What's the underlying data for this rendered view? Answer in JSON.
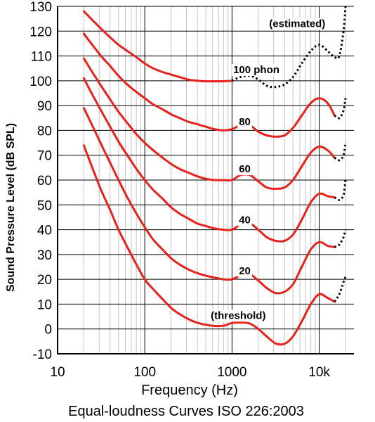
{
  "chart_data": {
    "type": "line",
    "title": "Equal-loudness Curves ISO 226:2003",
    "xlabel": "Frequency (Hz)",
    "ylabel": "Sound Pressure Level (dB SPL)",
    "x_scale": "log",
    "xlim": [
      10,
      25000
    ],
    "ylim": [
      -10,
      130
    ],
    "y_ticks": [
      -10,
      0,
      10,
      20,
      30,
      40,
      50,
      60,
      70,
      80,
      90,
      100,
      110,
      120,
      130
    ],
    "x_ticks": [
      {
        "value": 10,
        "label": "10"
      },
      {
        "value": 100,
        "label": "100"
      },
      {
        "value": 1000,
        "label": "1000"
      },
      {
        "value": 10000,
        "label": "10k"
      }
    ],
    "grid": true,
    "series": [
      {
        "name": "(threshold)",
        "color": "#e8211d",
        "measured": [
          [
            20,
            74
          ],
          [
            25,
            65
          ],
          [
            31.5,
            56
          ],
          [
            40,
            48
          ],
          [
            50,
            40
          ],
          [
            63,
            33
          ],
          [
            80,
            26
          ],
          [
            100,
            20
          ],
          [
            125,
            16
          ],
          [
            160,
            12
          ],
          [
            200,
            8.5
          ],
          [
            250,
            6
          ],
          [
            315,
            4
          ],
          [
            400,
            2.5
          ],
          [
            500,
            1.7
          ],
          [
            630,
            1.2
          ],
          [
            800,
            1.3
          ],
          [
            1000,
            2.4
          ],
          [
            1250,
            2.6
          ],
          [
            1600,
            2.2
          ],
          [
            2000,
            0
          ],
          [
            2500,
            -3
          ],
          [
            3150,
            -5.8
          ],
          [
            4000,
            -6
          ],
          [
            5000,
            -3
          ],
          [
            6300,
            3
          ],
          [
            8000,
            10
          ],
          [
            10000,
            14
          ],
          [
            12500,
            12.5
          ],
          [
            15000,
            11
          ]
        ],
        "estimated": [
          [
            15000,
            11
          ],
          [
            17000,
            14
          ],
          [
            19000,
            19
          ],
          [
            20000,
            21
          ]
        ]
      },
      {
        "name": "20",
        "color": "#e8211d",
        "measured": [
          [
            20,
            89
          ],
          [
            25,
            82
          ],
          [
            31.5,
            74.5
          ],
          [
            40,
            67
          ],
          [
            50,
            60
          ],
          [
            63,
            53
          ],
          [
            80,
            46.5
          ],
          [
            100,
            41
          ],
          [
            125,
            36
          ],
          [
            160,
            32
          ],
          [
            200,
            28.5
          ],
          [
            250,
            26
          ],
          [
            315,
            24
          ],
          [
            400,
            22.5
          ],
          [
            500,
            21.5
          ],
          [
            630,
            20.7
          ],
          [
            800,
            20
          ],
          [
            1000,
            20
          ],
          [
            1250,
            21.5
          ],
          [
            1600,
            22
          ],
          [
            2000,
            19.5
          ],
          [
            2500,
            16.5
          ],
          [
            3150,
            14.5
          ],
          [
            4000,
            15
          ],
          [
            5000,
            18
          ],
          [
            6300,
            25
          ],
          [
            8000,
            32
          ],
          [
            10000,
            35
          ],
          [
            12500,
            33.5
          ],
          [
            15000,
            33
          ]
        ],
        "estimated": [
          [
            15000,
            33
          ],
          [
            17000,
            34
          ],
          [
            19000,
            37
          ],
          [
            20000,
            40
          ]
        ]
      },
      {
        "name": "40",
        "color": "#e8211d",
        "measured": [
          [
            20,
            101
          ],
          [
            25,
            94.5
          ],
          [
            31.5,
            88
          ],
          [
            40,
            81.5
          ],
          [
            50,
            75.5
          ],
          [
            63,
            70
          ],
          [
            80,
            64.5
          ],
          [
            100,
            60
          ],
          [
            125,
            56
          ],
          [
            160,
            52.5
          ],
          [
            200,
            49
          ],
          [
            250,
            46.5
          ],
          [
            315,
            44.5
          ],
          [
            400,
            42.5
          ],
          [
            500,
            41.5
          ],
          [
            630,
            40.5
          ],
          [
            800,
            40
          ],
          [
            1000,
            40
          ],
          [
            1250,
            42
          ],
          [
            1600,
            42.5
          ],
          [
            2000,
            40
          ],
          [
            2500,
            37
          ],
          [
            3150,
            35.5
          ],
          [
            4000,
            35.5
          ],
          [
            5000,
            38
          ],
          [
            6300,
            44
          ],
          [
            8000,
            51
          ],
          [
            10000,
            54.5
          ],
          [
            12500,
            53.5
          ],
          [
            15000,
            53
          ]
        ],
        "estimated": [
          [
            15000,
            53
          ],
          [
            17000,
            52
          ],
          [
            19000,
            54
          ],
          [
            20000,
            60
          ]
        ]
      },
      {
        "name": "60",
        "color": "#e8211d",
        "measured": [
          [
            20,
            109
          ],
          [
            25,
            103.5
          ],
          [
            31.5,
            98
          ],
          [
            40,
            92.5
          ],
          [
            50,
            87.5
          ],
          [
            63,
            83
          ],
          [
            80,
            78.5
          ],
          [
            100,
            75
          ],
          [
            125,
            72
          ],
          [
            160,
            69
          ],
          [
            200,
            66.5
          ],
          [
            250,
            64.5
          ],
          [
            315,
            63
          ],
          [
            400,
            61.5
          ],
          [
            500,
            60.5
          ],
          [
            630,
            60
          ],
          [
            800,
            60
          ],
          [
            1000,
            60
          ],
          [
            1250,
            62
          ],
          [
            1600,
            62
          ],
          [
            2000,
            59.5
          ],
          [
            2500,
            57
          ],
          [
            3150,
            56.5
          ],
          [
            4000,
            57
          ],
          [
            5000,
            60
          ],
          [
            6300,
            65.5
          ],
          [
            8000,
            71
          ],
          [
            10000,
            73.5
          ],
          [
            12500,
            72
          ],
          [
            15000,
            69
          ]
        ],
        "estimated": [
          [
            15000,
            69
          ],
          [
            17000,
            68
          ],
          [
            19000,
            70
          ],
          [
            20000,
            75
          ]
        ]
      },
      {
        "name": "80",
        "color": "#e8211d",
        "measured": [
          [
            20,
            119
          ],
          [
            25,
            114.5
          ],
          [
            31.5,
            110
          ],
          [
            40,
            106
          ],
          [
            50,
            102
          ],
          [
            63,
            98.5
          ],
          [
            80,
            95.5
          ],
          [
            100,
            93
          ],
          [
            125,
            90.5
          ],
          [
            160,
            88.5
          ],
          [
            200,
            86.5
          ],
          [
            250,
            85
          ],
          [
            315,
            83.5
          ],
          [
            400,
            82.5
          ],
          [
            500,
            81.5
          ],
          [
            630,
            80.5
          ],
          [
            800,
            80
          ],
          [
            1000,
            80.5
          ],
          [
            1250,
            82
          ],
          [
            1600,
            82
          ],
          [
            2000,
            79.5
          ],
          [
            2500,
            78
          ],
          [
            3150,
            77.5
          ],
          [
            4000,
            78
          ],
          [
            5000,
            81
          ],
          [
            6300,
            86
          ],
          [
            8000,
            91
          ],
          [
            10000,
            93
          ],
          [
            12500,
            91
          ],
          [
            15000,
            86
          ]
        ],
        "estimated": [
          [
            15000,
            86
          ],
          [
            17000,
            85
          ],
          [
            19000,
            88
          ],
          [
            20000,
            93
          ]
        ]
      },
      {
        "name": "100 phon",
        "color": "#e8211d",
        "measured": [
          [
            20,
            128
          ],
          [
            25,
            124.5
          ],
          [
            31.5,
            121
          ],
          [
            40,
            117.5
          ],
          [
            50,
            114.5
          ],
          [
            63,
            112
          ],
          [
            80,
            109.5
          ],
          [
            100,
            107
          ],
          [
            125,
            105
          ],
          [
            160,
            103.5
          ],
          [
            200,
            102.5
          ],
          [
            250,
            101.5
          ],
          [
            315,
            100.5
          ],
          [
            400,
            100
          ],
          [
            500,
            99.8
          ],
          [
            630,
            99.8
          ],
          [
            800,
            99.8
          ],
          [
            1000,
            100
          ]
        ],
        "estimated": [
          [
            1000,
            100
          ],
          [
            1250,
            101.5
          ],
          [
            1600,
            102
          ],
          [
            2000,
            100.5
          ],
          [
            2500,
            98
          ],
          [
            3150,
            97.5
          ],
          [
            4000,
            98.5
          ],
          [
            5000,
            101.5
          ],
          [
            6300,
            107
          ],
          [
            8000,
            112
          ],
          [
            10000,
            114.5
          ],
          [
            12500,
            112
          ],
          [
            15000,
            109.5
          ],
          [
            17000,
            110
          ],
          [
            19000,
            120
          ],
          [
            20000,
            130
          ]
        ]
      }
    ],
    "annotations": [
      {
        "text": "(estimated)",
        "x": 5600,
        "y": 123
      },
      {
        "text": "100 phon",
        "x": 1900,
        "y": 104.5
      },
      {
        "text": "80",
        "x": 1400,
        "y": 83.5
      },
      {
        "text": "60",
        "x": 1400,
        "y": 64.5
      },
      {
        "text": "40",
        "x": 1400,
        "y": 44
      },
      {
        "text": "20",
        "x": 1400,
        "y": 23.5
      },
      {
        "text": "(threshold)",
        "x": 1180,
        "y": 5.5
      }
    ]
  }
}
